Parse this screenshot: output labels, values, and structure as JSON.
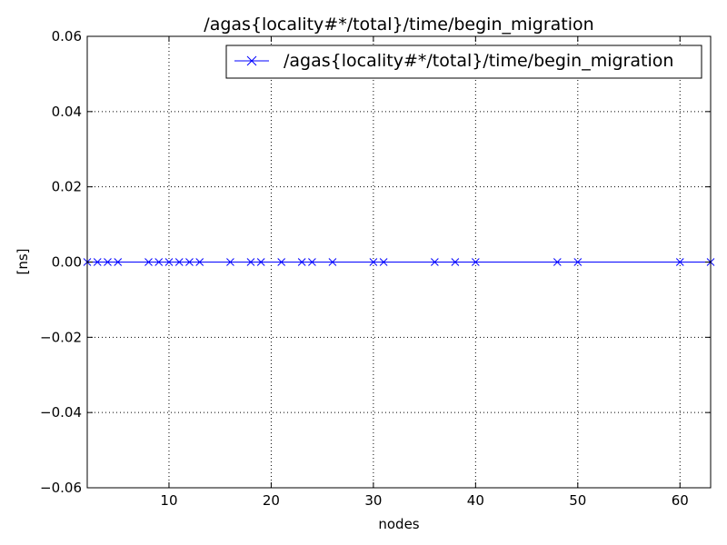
{
  "chart_data": {
    "type": "line",
    "title": "/agas{locality#*/total}/time/begin_migration",
    "xlabel": "nodes",
    "ylabel": "[ns]",
    "xlim": [
      2,
      63
    ],
    "ylim": [
      -0.06,
      0.06
    ],
    "xticks": [
      10,
      20,
      30,
      40,
      50,
      60
    ],
    "yticks": [
      -0.06,
      -0.04,
      -0.02,
      0.0,
      0.02,
      0.04,
      0.06
    ],
    "ytick_labels": [
      "−0.06",
      "−0.04",
      "−0.02",
      "0.00",
      "0.02",
      "0.04",
      "0.06"
    ],
    "grid": true,
    "legend_position": "top-right",
    "series": [
      {
        "name": "/agas{locality#*/total}/time/begin_migration",
        "color": "#0000ff",
        "marker": "x",
        "x": [
          2,
          3,
          4,
          5,
          8,
          9,
          10,
          11,
          12,
          13,
          16,
          18,
          19,
          21,
          23,
          24,
          26,
          30,
          31,
          36,
          38,
          40,
          48,
          50,
          60,
          63
        ],
        "y": [
          0,
          0,
          0,
          0,
          0,
          0,
          0,
          0,
          0,
          0,
          0,
          0,
          0,
          0,
          0,
          0,
          0,
          0,
          0,
          0,
          0,
          0,
          0,
          0,
          0,
          0
        ]
      }
    ]
  }
}
